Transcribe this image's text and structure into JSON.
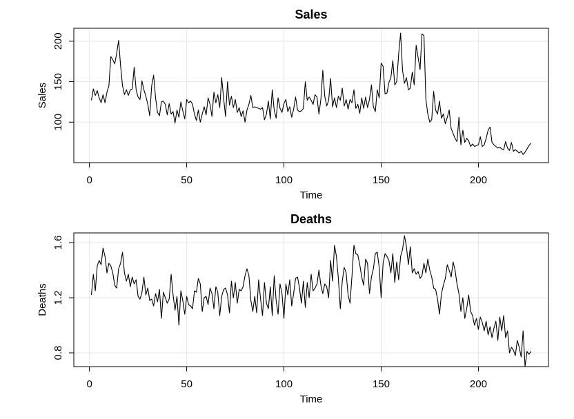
{
  "chart_data": [
    {
      "type": "line",
      "title": "Sales",
      "xlabel": "Time",
      "ylabel": "Sales",
      "color": "#000000",
      "grid": true,
      "xlim": [
        -8.04,
        236.04
      ],
      "xticks": [
        0,
        50,
        100,
        150,
        200
      ],
      "ylim": [
        50,
        216
      ],
      "yticks": [
        100,
        150,
        200
      ],
      "x": [
        1,
        2,
        3,
        4,
        5,
        6,
        7,
        8,
        9,
        10,
        11,
        12,
        13,
        14,
        15,
        16,
        17,
        18,
        19,
        20,
        21,
        22,
        23,
        24,
        25,
        26,
        27,
        28,
        29,
        30,
        31,
        32,
        33,
        34,
        35,
        36,
        37,
        38,
        39,
        40,
        41,
        42,
        43,
        44,
        45,
        46,
        47,
        48,
        49,
        50,
        51,
        52,
        53,
        54,
        55,
        56,
        57,
        58,
        59,
        60,
        61,
        62,
        63,
        64,
        65,
        66,
        67,
        68,
        69,
        70,
        71,
        72,
        73,
        74,
        75,
        76,
        77,
        78,
        79,
        80,
        81,
        82,
        83,
        84,
        85,
        86,
        87,
        88,
        89,
        90,
        91,
        92,
        93,
        94,
        95,
        96,
        97,
        98,
        99,
        100,
        101,
        102,
        103,
        104,
        105,
        106,
        107,
        108,
        109,
        110,
        111,
        112,
        113,
        114,
        115,
        116,
        117,
        118,
        119,
        120,
        121,
        122,
        123,
        124,
        125,
        126,
        127,
        128,
        129,
        130,
        131,
        132,
        133,
        134,
        135,
        136,
        137,
        138,
        139,
        140,
        141,
        142,
        143,
        144,
        145,
        146,
        147,
        148,
        149,
        150,
        151,
        152,
        153,
        154,
        155,
        156,
        157,
        158,
        159,
        160,
        161,
        162,
        163,
        164,
        165,
        166,
        167,
        168,
        169,
        170,
        171,
        172,
        173,
        174,
        175,
        176,
        177,
        178,
        179,
        180,
        181,
        182,
        183,
        184,
        185,
        186,
        187,
        188,
        189,
        190,
        191,
        192,
        193,
        194,
        195,
        196,
        197,
        198,
        199,
        200,
        201,
        202,
        203,
        204,
        205,
        206,
        207,
        208,
        209,
        210,
        211,
        212,
        213,
        214,
        215,
        216,
        217,
        218,
        219,
        220,
        221,
        222,
        223,
        224,
        225,
        226,
        227
      ],
      "values": [
        127,
        141,
        133,
        139,
        130,
        124,
        134,
        124,
        137,
        145,
        181,
        177,
        172,
        185,
        201,
        170,
        145,
        134,
        140,
        133,
        140,
        141,
        168,
        140,
        131,
        128,
        151,
        140,
        132,
        122,
        108,
        145,
        158,
        130,
        112,
        108,
        125,
        126,
        122,
        109,
        123,
        110,
        113,
        99,
        115,
        106,
        125,
        114,
        104,
        128,
        124,
        126,
        122,
        110,
        102,
        115,
        100,
        110,
        119,
        109,
        130,
        122,
        107,
        137,
        124,
        134,
        118,
        155,
        129,
        107,
        150,
        121,
        132,
        118,
        128,
        112,
        118,
        107,
        114,
        100,
        115,
        122,
        133,
        118,
        119,
        118,
        117,
        116,
        118,
        103,
        110,
        126,
        104,
        140,
        115,
        105,
        130,
        117,
        112,
        123,
        128,
        113,
        119,
        106,
        116,
        131,
        115,
        113,
        114,
        117,
        150,
        127,
        131,
        127,
        122,
        134,
        131,
        110,
        128,
        164,
        132,
        120,
        127,
        154,
        119,
        130,
        118,
        132,
        127,
        142,
        120,
        128,
        116,
        128,
        124,
        140,
        117,
        122,
        111,
        130,
        117,
        131,
        118,
        128,
        146,
        119,
        113,
        140,
        130,
        173,
        169,
        135,
        136,
        149,
        155,
        176,
        146,
        150,
        184,
        210,
        164,
        148,
        155,
        140,
        142,
        162,
        146,
        195,
        180,
        165,
        209,
        207,
        128,
        110,
        100,
        103,
        138,
        115,
        110,
        126,
        105,
        110,
        98,
        106,
        115,
        92,
        86,
        80,
        76,
        106,
        72,
        90,
        75,
        80,
        77,
        70,
        73,
        70,
        71,
        72,
        82,
        70,
        72,
        80,
        90,
        94,
        75,
        72,
        70,
        68,
        69,
        67,
        66,
        76,
        68,
        65,
        75,
        64,
        66,
        64,
        62,
        64,
        60,
        63,
        67,
        71,
        74
      ]
    },
    {
      "type": "line",
      "title": "Deaths",
      "xlabel": "Time",
      "ylabel": "Deaths",
      "color": "#000000",
      "grid": true,
      "xlim": [
        -8.04,
        236.04
      ],
      "xticks": [
        0,
        50,
        100,
        150,
        200
      ],
      "ylim": [
        0.7,
        1.67
      ],
      "yticks": [
        0.8,
        1.2,
        1.6
      ],
      "x": [
        1,
        2,
        3,
        4,
        5,
        6,
        7,
        8,
        9,
        10,
        11,
        12,
        13,
        14,
        15,
        16,
        17,
        18,
        19,
        20,
        21,
        22,
        23,
        24,
        25,
        26,
        27,
        28,
        29,
        30,
        31,
        32,
        33,
        34,
        35,
        36,
        37,
        38,
        39,
        40,
        41,
        42,
        43,
        44,
        45,
        46,
        47,
        48,
        49,
        50,
        51,
        52,
        53,
        54,
        55,
        56,
        57,
        58,
        59,
        60,
        61,
        62,
        63,
        64,
        65,
        66,
        67,
        68,
        69,
        70,
        71,
        72,
        73,
        74,
        75,
        76,
        77,
        78,
        79,
        80,
        81,
        82,
        83,
        84,
        85,
        86,
        87,
        88,
        89,
        90,
        91,
        92,
        93,
        94,
        95,
        96,
        97,
        98,
        99,
        100,
        101,
        102,
        103,
        104,
        105,
        106,
        107,
        108,
        109,
        110,
        111,
        112,
        113,
        114,
        115,
        116,
        117,
        118,
        119,
        120,
        121,
        122,
        123,
        124,
        125,
        126,
        127,
        128,
        129,
        130,
        131,
        132,
        133,
        134,
        135,
        136,
        137,
        138,
        139,
        140,
        141,
        142,
        143,
        144,
        145,
        146,
        147,
        148,
        149,
        150,
        151,
        152,
        153,
        154,
        155,
        156,
        157,
        158,
        159,
        160,
        161,
        162,
        163,
        164,
        165,
        166,
        167,
        168,
        169,
        170,
        171,
        172,
        173,
        174,
        175,
        176,
        177,
        178,
        179,
        180,
        181,
        182,
        183,
        184,
        185,
        186,
        187,
        188,
        189,
        190,
        191,
        192,
        193,
        194,
        195,
        196,
        197,
        198,
        199,
        200,
        201,
        202,
        203,
        204,
        205,
        206,
        207,
        208,
        209,
        210,
        211,
        212,
        213,
        214,
        215,
        216,
        217,
        218,
        219,
        220,
        221,
        222,
        223,
        224,
        225,
        226,
        227
      ],
      "values": [
        1.22,
        1.37,
        1.25,
        1.43,
        1.47,
        1.44,
        1.56,
        1.5,
        1.38,
        1.45,
        1.43,
        1.38,
        1.29,
        1.27,
        1.41,
        1.45,
        1.53,
        1.38,
        1.32,
        1.37,
        1.28,
        1.35,
        1.3,
        1.33,
        1.21,
        1.19,
        1.24,
        1.35,
        1.22,
        1.27,
        1.18,
        1.19,
        1.14,
        1.23,
        1.17,
        1.26,
        1.05,
        1.24,
        1.2,
        1.16,
        1.19,
        1.37,
        1.22,
        1.11,
        1.21,
        1.0,
        1.25,
        1.18,
        1.08,
        1.21,
        1.15,
        1.14,
        1.12,
        1.25,
        1.24,
        1.34,
        1.3,
        1.1,
        1.2,
        1.21,
        1.15,
        1.27,
        1.23,
        1.12,
        1.28,
        1.24,
        1.07,
        1.21,
        1.26,
        1.27,
        1.22,
        1.09,
        1.32,
        1.2,
        1.31,
        1.16,
        1.26,
        1.25,
        1.28,
        1.36,
        1.41,
        1.36,
        1.18,
        1.1,
        1.21,
        1.09,
        1.33,
        1.19,
        1.07,
        1.31,
        1.16,
        1.12,
        1.28,
        1.07,
        1.36,
        1.18,
        1.08,
        1.3,
        1.23,
        1.05,
        1.3,
        1.22,
        1.33,
        1.14,
        1.23,
        1.34,
        1.35,
        1.27,
        1.16,
        1.32,
        1.13,
        1.31,
        1.2,
        1.37,
        1.25,
        1.27,
        1.3,
        1.4,
        1.29,
        1.23,
        1.3,
        1.28,
        1.2,
        1.47,
        1.32,
        1.58,
        1.5,
        1.34,
        1.12,
        1.32,
        1.42,
        1.38,
        1.22,
        1.16,
        1.36,
        1.58,
        1.52,
        1.51,
        1.44,
        1.35,
        1.29,
        1.48,
        1.45,
        1.23,
        1.35,
        1.41,
        1.52,
        1.53,
        1.42,
        1.2,
        1.45,
        1.52,
        1.5,
        1.47,
        1.38,
        1.52,
        1.31,
        1.46,
        1.33,
        1.5,
        1.55,
        1.65,
        1.57,
        1.44,
        1.57,
        1.38,
        1.41,
        1.37,
        1.39,
        1.34,
        1.36,
        1.45,
        1.38,
        1.48,
        1.4,
        1.35,
        1.27,
        1.26,
        1.19,
        1.08,
        1.23,
        1.29,
        1.34,
        1.44,
        1.4,
        1.35,
        1.46,
        1.4,
        1.3,
        1.23,
        1.1,
        1.2,
        1.05,
        1.12,
        1.22,
        1.1,
        1.07,
        1.0,
        1.05,
        0.97,
        1.06,
        1.02,
        0.96,
        1.03,
        0.93,
        0.99,
        0.91,
        0.98,
        1.03,
        0.89,
        1.06,
        0.96,
        1.07,
        0.91,
        0.96,
        0.8,
        0.84,
        0.82,
        0.78,
        0.89,
        0.84,
        0.77,
        0.96,
        0.7,
        0.81,
        0.79,
        0.81
      ]
    }
  ]
}
